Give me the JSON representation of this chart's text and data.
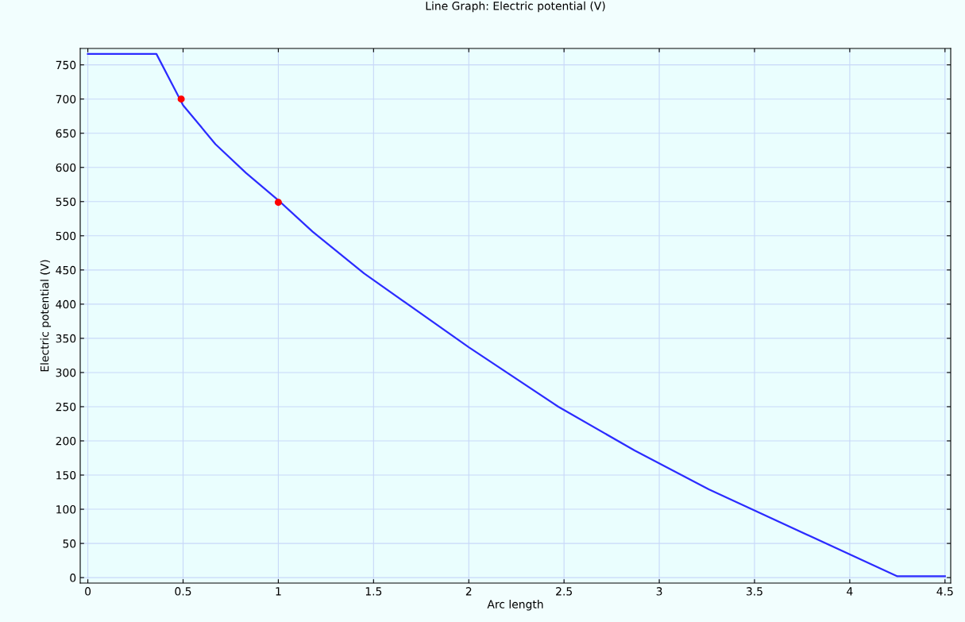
{
  "chart_data": {
    "type": "line",
    "title": "Line Graph: Electric potential (V)",
    "xlabel": "Arc length",
    "ylabel": "Electric potential (V)",
    "series": [
      {
        "color": "#2b2bff",
        "x": [
          0,
          0.36,
          0.5,
          0.67,
          0.83,
          1.0,
          1.18,
          1.45,
          2.0,
          2.47,
          2.87,
          3.26,
          4.25,
          4.5
        ],
        "values": [
          766,
          766,
          691,
          634,
          592,
          552,
          506,
          445,
          337,
          250,
          186,
          129,
          2,
          2
        ]
      },
      {
        "type": "scatter",
        "color": "#ff0000",
        "x": [
          0.49,
          1.0
        ],
        "values": [
          700,
          549
        ]
      }
    ],
    "xlim": [
      -0.04,
      4.53
    ],
    "ylim": [
      -8,
      774
    ],
    "xticks": [
      0,
      0.5,
      1,
      1.5,
      2,
      2.5,
      3,
      3.5,
      4,
      4.5
    ],
    "yticks": [
      0,
      50,
      100,
      150,
      200,
      250,
      300,
      350,
      400,
      450,
      500,
      550,
      600,
      650,
      700,
      750
    ],
    "grid": true,
    "marker": "none",
    "line_style": "solid"
  }
}
